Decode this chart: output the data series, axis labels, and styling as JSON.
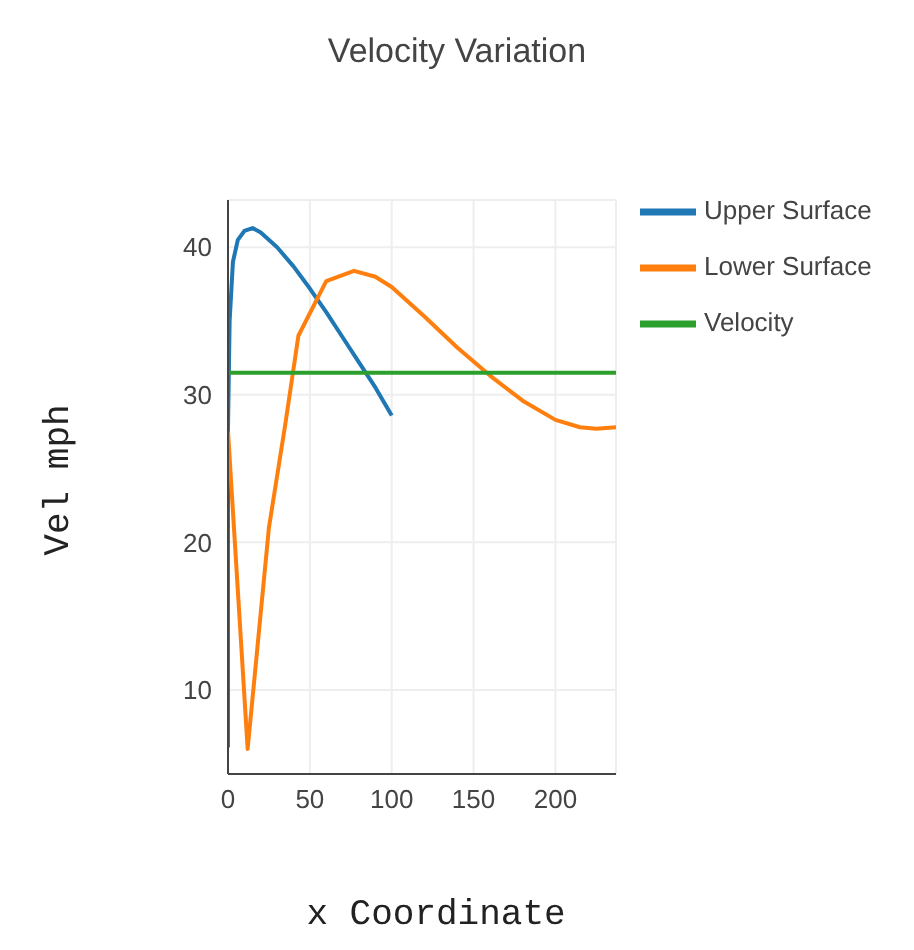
{
  "chart_data": {
    "type": "line",
    "title": "Velocity Variation",
    "xlabel": "x Coordinate",
    "ylabel": "Vel mph",
    "xlim": [
      0,
      237
    ],
    "ylim": [
      4.3,
      43.2
    ],
    "xticks": [
      0,
      50,
      100,
      150,
      200
    ],
    "yticks": [
      10,
      20,
      30,
      40
    ],
    "grid": true,
    "legend": "top right",
    "marker": "none",
    "line_style": "solid",
    "series": [
      {
        "name": "Upper Surface",
        "color": "#1f77b4",
        "x": [
          0,
          0,
          1,
          3,
          6,
          10,
          15,
          20,
          30,
          40,
          50,
          60,
          70,
          80,
          90,
          100
        ],
        "values": [
          6.1,
          27.8,
          35,
          39,
          40.5,
          41.1,
          41.3,
          41.0,
          40.0,
          38.7,
          37.2,
          35.6,
          33.9,
          32.2,
          30.5,
          28.6
        ]
      },
      {
        "name": "Lower Surface",
        "color": "#ff7f0e",
        "x": [
          0,
          12,
          25,
          35,
          43,
          60,
          77,
          90,
          100,
          120,
          140,
          160,
          180,
          200,
          215,
          225,
          237
        ],
        "values": [
          27.5,
          6.0,
          21,
          28,
          34,
          37.7,
          38.4,
          38,
          37.3,
          35.3,
          33.2,
          31.3,
          29.6,
          28.3,
          27.8,
          27.7,
          27.8
        ]
      },
      {
        "name": "Velocity",
        "color": "#2ca02c",
        "x": [
          0,
          237
        ],
        "values": [
          31.5,
          31.5
        ]
      }
    ]
  }
}
